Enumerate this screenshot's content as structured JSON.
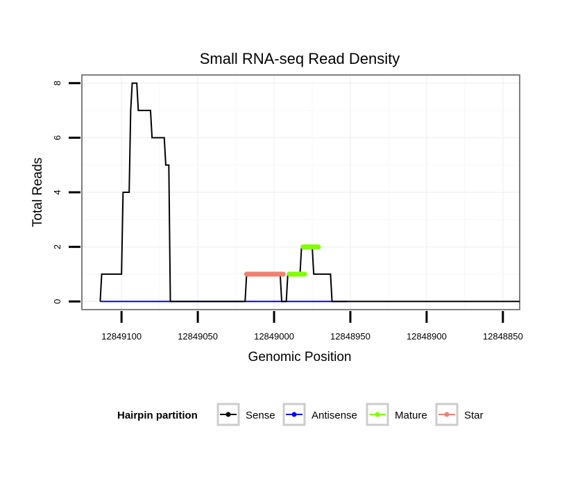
{
  "chart_data": {
    "type": "line",
    "title": "Small RNA-seq Read Density",
    "xlabel": "Genomic Position",
    "ylabel": "Total Reads",
    "xlim": [
      12849126,
      12848839
    ],
    "ylim": [
      -0.3,
      8.3
    ],
    "x_reversed": true,
    "x_ticks": [
      12849100,
      12849050,
      12849000,
      12848950,
      12848900,
      12848850
    ],
    "x_tick_labels": [
      "12849100",
      "12849050",
      "12849000",
      "12848950",
      "12848900",
      "12848850"
    ],
    "y_ticks": [
      0,
      2,
      4,
      6,
      8
    ],
    "y_tick_labels": [
      "0",
      "2",
      "4",
      "6",
      "8"
    ],
    "grid": true,
    "legend": {
      "title": "Hairpin partition",
      "position": "bottom",
      "entries": [
        "Sense",
        "Antisense",
        "Mature",
        "Star"
      ]
    },
    "series": [
      {
        "name": "Sense",
        "color": "#000000",
        "x": [
          12849114,
          12849113,
          12849100,
          12849099,
          12849095,
          12849094,
          12849093,
          12849092,
          12849090,
          12849089,
          12849081,
          12849080,
          12849072,
          12849071,
          12849069,
          12849068,
          12849019,
          12849018,
          12848996,
          12848995,
          12848992,
          12848991,
          12848983,
          12848982,
          12848975,
          12848974,
          12848963,
          12848962,
          12848953,
          12848952,
          12848839
        ],
        "y": [
          0,
          1,
          1,
          4,
          4,
          7,
          8,
          8,
          8,
          7,
          7,
          6,
          6,
          5,
          5,
          0,
          0,
          1,
          1,
          0,
          0,
          1,
          1,
          2,
          2,
          1,
          1,
          0,
          0,
          0,
          0
        ]
      },
      {
        "name": "Antisense",
        "color": "#0000ff",
        "x": [
          12849114,
          12848952
        ],
        "y": [
          0,
          0
        ]
      },
      {
        "name": "Mature",
        "color": "#7fff00",
        "segments": [
          {
            "x": [
              12848990,
              12848980
            ],
            "y": [
              1,
              1
            ]
          },
          {
            "x": [
              12848981,
              12848971
            ],
            "y": [
              2,
              2
            ]
          }
        ]
      },
      {
        "name": "Star",
        "color": "#f08070",
        "segments": [
          {
            "x": [
              12849018,
              12848994
            ],
            "y": [
              1,
              1
            ]
          }
        ]
      }
    ]
  }
}
